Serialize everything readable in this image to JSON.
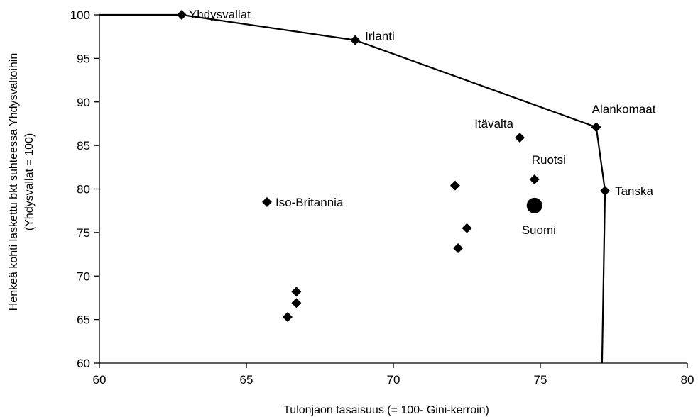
{
  "chart_data": {
    "type": "scatter",
    "title": "",
    "xlabel": "Tulonjaon tasaisuus (= 100- Gini-kerroin)",
    "ylabel_line1": "Henkeä kohti laskettu bkt suhteessa Yhdysvaltoihin",
    "ylabel_line2": "(Yhdysvallat = 100)",
    "xlim": [
      60,
      80
    ],
    "ylim": [
      60,
      100
    ],
    "xticks": [
      60,
      65,
      70,
      75,
      80
    ],
    "yticks": [
      60,
      65,
      70,
      75,
      80,
      85,
      90,
      95,
      100
    ],
    "grid": false,
    "legend": "none",
    "frontier": {
      "points": [
        {
          "x": 60,
          "y": 100
        },
        {
          "x": 62.8,
          "y": 100
        },
        {
          "x": 68.7,
          "y": 97.1
        },
        {
          "x": 76.9,
          "y": 87.1
        },
        {
          "x": 77.2,
          "y": 79.8
        },
        {
          "x": 77.1,
          "y": 60
        }
      ]
    },
    "points": [
      {
        "x": 62.8,
        "y": 100,
        "label": "Yhdysvallat",
        "marker": "diamond"
      },
      {
        "x": 68.7,
        "y": 97.1,
        "label": "Irlanti",
        "marker": "diamond"
      },
      {
        "x": 76.9,
        "y": 87.1,
        "label": "Alankomaat",
        "marker": "diamond"
      },
      {
        "x": 74.3,
        "y": 85.9,
        "label": "Itävalta",
        "marker": "diamond"
      },
      {
        "x": 74.8,
        "y": 81.1,
        "label": "Ruotsi",
        "marker": "diamond"
      },
      {
        "x": 77.2,
        "y": 79.8,
        "label": "Tanska",
        "marker": "diamond"
      },
      {
        "x": 65.7,
        "y": 78.5,
        "label": "Iso-Britannia",
        "marker": "diamond"
      },
      {
        "x": 74.8,
        "y": 78.1,
        "label": "Suomi",
        "marker": "circle"
      },
      {
        "x": 72.1,
        "y": 80.4,
        "label": "",
        "marker": "diamond"
      },
      {
        "x": 72.5,
        "y": 75.5,
        "label": "",
        "marker": "diamond"
      },
      {
        "x": 72.2,
        "y": 73.2,
        "label": "",
        "marker": "diamond"
      },
      {
        "x": 66.7,
        "y": 68.2,
        "label": "",
        "marker": "diamond"
      },
      {
        "x": 66.7,
        "y": 66.9,
        "label": "",
        "marker": "diamond"
      },
      {
        "x": 66.4,
        "y": 65.3,
        "label": "",
        "marker": "diamond"
      }
    ],
    "colors": {
      "marker": "#000000",
      "line": "#000000"
    }
  }
}
